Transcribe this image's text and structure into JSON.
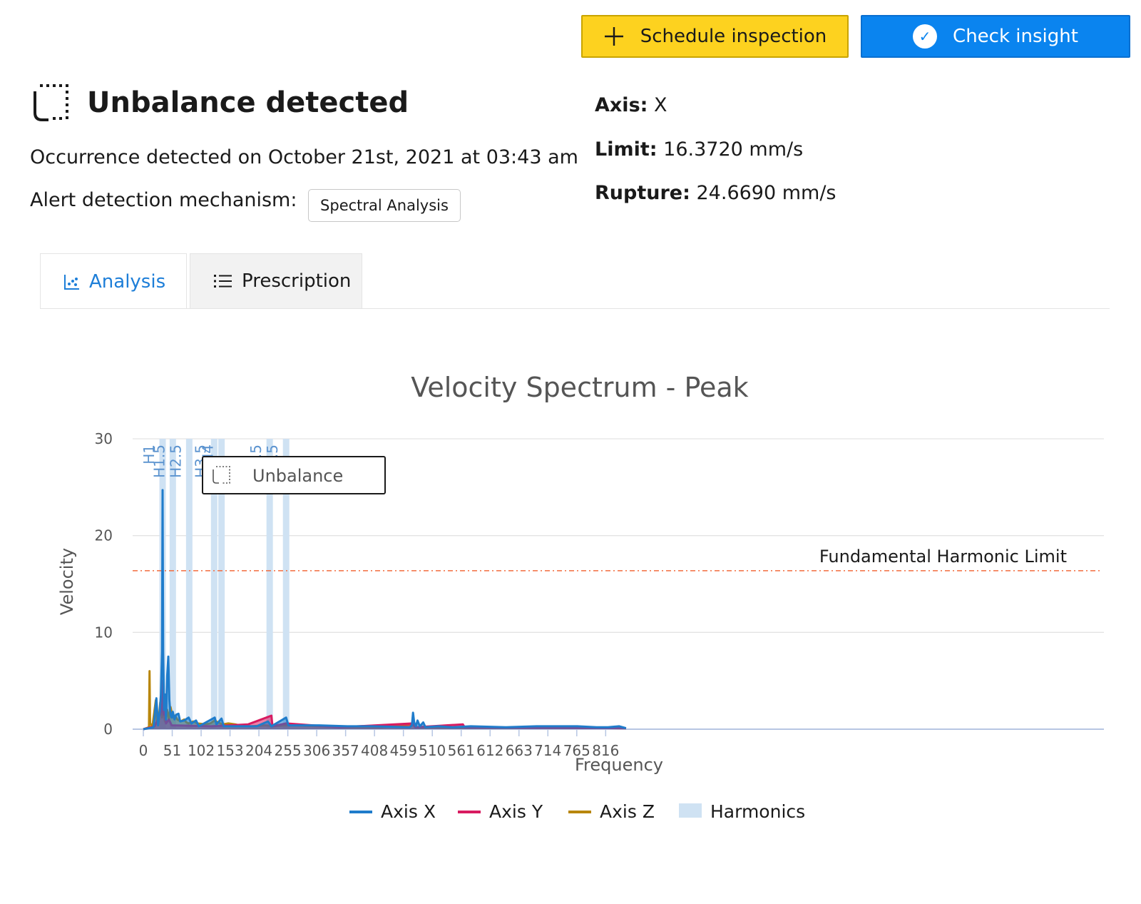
{
  "actions": {
    "schedule_label": "Schedule inspection",
    "check_label": "Check insight"
  },
  "header": {
    "title": "Unbalance detected",
    "occurrence": "Occurrence detected on October 21st, 2021 at 03:43 am",
    "mechanism_label": "Alert detection mechanism:",
    "mechanism_value": "Spectral Analysis"
  },
  "meta": {
    "axis_label": "Axis:",
    "axis_value": "X",
    "limit_label": "Limit:",
    "limit_value": "16.3720 mm/s",
    "rupture_label": "Rupture:",
    "rupture_value": "24.6690 mm/s"
  },
  "tabs": [
    {
      "label": "Analysis",
      "icon": "scatter-chart-icon",
      "active": true
    },
    {
      "label": "Prescription",
      "icon": "list-icon",
      "active": false
    }
  ],
  "chart_data": {
    "type": "line",
    "title": "Velocity Spectrum - Peak",
    "xlabel": "Frequency",
    "ylabel": "Velocity",
    "xlim": [
      0,
      852
    ],
    "ylim": [
      0,
      30
    ],
    "x_ticks": [
      0,
      51,
      102,
      153,
      204,
      255,
      306,
      357,
      408,
      459,
      510,
      561,
      612,
      663,
      714,
      765,
      816
    ],
    "y_ticks": [
      0,
      10,
      20,
      30
    ],
    "grid": true,
    "legend_position": "bottom",
    "limit_line": {
      "label": "Fundamental Harmonic Limit",
      "value": 16.372,
      "color": "#f36c3e"
    },
    "harmonic_color": "#cfe2f3",
    "harmonics": [
      {
        "label": "H1",
        "x": 34
      },
      {
        "label": "H1.5",
        "x": 52
      },
      {
        "label": "H2.5",
        "x": 81
      },
      {
        "label": "H3.5",
        "x": 125
      },
      {
        "label": "H4",
        "x": 138
      },
      {
        "label": "H6.5",
        "x": 223
      },
      {
        "label": "H7.5",
        "x": 252
      }
    ],
    "annotation": {
      "label": "Unbalance",
      "icon": "unbalance-icon"
    },
    "series": [
      {
        "name": "Axis X",
        "color": "#1f7ccb",
        "points": [
          [
            0,
            0
          ],
          [
            18,
            0.2
          ],
          [
            23,
            3.2
          ],
          [
            26,
            0.4
          ],
          [
            29,
            1.8
          ],
          [
            31,
            3.5
          ],
          [
            33,
            8
          ],
          [
            34,
            24.7
          ],
          [
            35,
            8
          ],
          [
            36.5,
            2
          ],
          [
            38,
            3.6
          ],
          [
            40,
            1
          ],
          [
            42,
            5.5
          ],
          [
            44,
            7.5
          ],
          [
            46,
            3
          ],
          [
            48,
            1.5
          ],
          [
            50,
            1.2
          ],
          [
            52,
            1.8
          ],
          [
            55,
            1
          ],
          [
            58,
            1.5
          ],
          [
            62,
            1.6
          ],
          [
            65,
            0.8
          ],
          [
            72,
            0.9
          ],
          [
            80,
            1.2
          ],
          [
            85,
            0.6
          ],
          [
            93,
            0.9
          ],
          [
            98,
            0.3
          ],
          [
            126,
            1.2
          ],
          [
            129,
            0.5
          ],
          [
            138,
            1.1
          ],
          [
            142,
            0.3
          ],
          [
            200,
            0.3
          ],
          [
            220,
            0.8
          ],
          [
            226,
            0.3
          ],
          [
            252,
            1.2
          ],
          [
            256,
            0.4
          ],
          [
            310,
            0.4
          ],
          [
            360,
            0.3
          ],
          [
            380,
            0.3
          ],
          [
            404,
            0.3
          ],
          [
            470,
            0.2
          ],
          [
            474,
            0.4
          ],
          [
            476,
            1.7
          ],
          [
            478,
            0.7
          ],
          [
            481,
            0.3
          ],
          [
            484,
            0.9
          ],
          [
            488,
            0.3
          ],
          [
            494,
            0.7
          ],
          [
            498,
            0.2
          ],
          [
            520,
            0.3
          ],
          [
            545,
            0.2
          ],
          [
            578,
            0.3
          ],
          [
            640,
            0.2
          ],
          [
            694,
            0.3
          ],
          [
            766,
            0.3
          ],
          [
            800,
            0.2
          ],
          [
            820,
            0.2
          ],
          [
            840,
            0.3
          ],
          [
            852,
            0.1
          ]
        ]
      },
      {
        "name": "Axis Y",
        "color": "#d81b60",
        "points": [
          [
            0,
            0
          ],
          [
            20,
            0.3
          ],
          [
            33,
            2
          ],
          [
            34,
            5
          ],
          [
            35,
            3.5
          ],
          [
            36,
            1.5
          ],
          [
            38,
            2.6
          ],
          [
            40,
            0.6
          ],
          [
            45,
            1
          ],
          [
            50,
            0.4
          ],
          [
            120,
            0.3
          ],
          [
            185,
            0.5
          ],
          [
            226,
            1.4
          ],
          [
            228,
            0.3
          ],
          [
            252,
            0.6
          ],
          [
            345,
            0.2
          ],
          [
            476,
            0.6
          ],
          [
            480,
            0.2
          ],
          [
            564,
            0.5
          ],
          [
            567,
            0.2
          ],
          [
            852,
            0.1
          ]
        ]
      },
      {
        "name": "Axis Z",
        "color": "#b8860b",
        "points": [
          [
            0,
            0
          ],
          [
            10,
            0.2
          ],
          [
            11,
            6
          ],
          [
            12,
            0.6
          ],
          [
            16,
            0.3
          ],
          [
            22,
            3
          ],
          [
            24,
            0.6
          ],
          [
            28,
            1.5
          ],
          [
            30,
            2.8
          ],
          [
            33,
            1.2
          ],
          [
            36,
            2.4
          ],
          [
            38,
            0.8
          ],
          [
            42,
            2
          ],
          [
            45,
            1
          ],
          [
            48,
            2.3
          ],
          [
            52,
            1.2
          ],
          [
            56,
            1.4
          ],
          [
            60,
            1
          ],
          [
            66,
            0.8
          ],
          [
            72,
            1
          ],
          [
            76,
            0.7
          ],
          [
            80,
            0.6
          ],
          [
            88,
            0.8
          ],
          [
            95,
            0.6
          ],
          [
            110,
            0.5
          ],
          [
            118,
            0.6
          ],
          [
            126,
            0.9
          ],
          [
            132,
            0.7
          ],
          [
            140,
            0.5
          ],
          [
            150,
            0.6
          ],
          [
            162,
            0.5
          ],
          [
            170,
            0.4
          ],
          [
            190,
            0.3
          ],
          [
            216,
            0.4
          ],
          [
            230,
            0.3
          ],
          [
            250,
            0.4
          ],
          [
            270,
            0.4
          ],
          [
            350,
            0.2
          ],
          [
            420,
            0.2
          ],
          [
            476,
            0.5
          ],
          [
            480,
            0.2
          ],
          [
            852,
            0.1
          ]
        ]
      }
    ]
  }
}
